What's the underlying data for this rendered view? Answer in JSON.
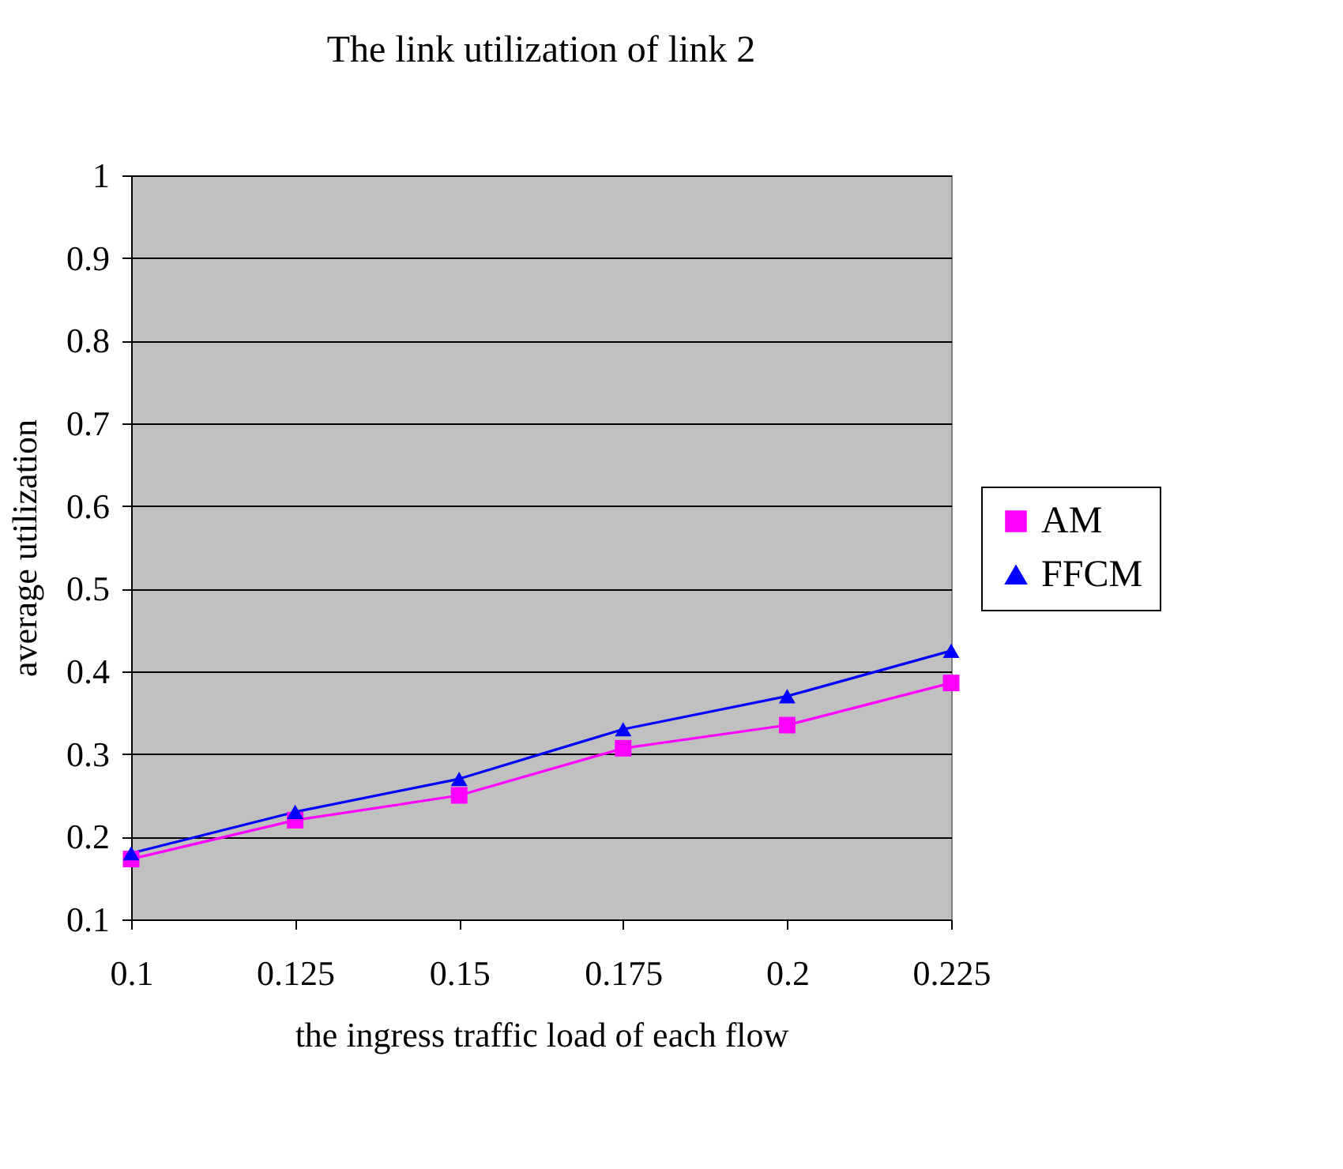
{
  "chart_data": {
    "type": "line",
    "title": "The link utilization of link 2",
    "xlabel": "the ingress traffic load of each flow",
    "ylabel": "average utilization",
    "categories": [
      "0.1",
      "0.125",
      "0.15",
      "0.175",
      "0.2",
      "0.225"
    ],
    "series": [
      {
        "name": "AM",
        "color": "#ff00ff",
        "marker": "square",
        "values": [
          0.173,
          0.22,
          0.25,
          0.307,
          0.335,
          0.386
        ]
      },
      {
        "name": "FFCM",
        "color": "#0000ff",
        "marker": "triangle",
        "values": [
          0.18,
          0.23,
          0.27,
          0.33,
          0.37,
          0.425
        ]
      }
    ],
    "ylim": [
      0.1,
      1
    ],
    "yticks": [
      0.1,
      0.2,
      0.3,
      0.4,
      0.5,
      0.6,
      0.7,
      0.8,
      0.9,
      1
    ],
    "grid": "y",
    "legend": "right"
  }
}
